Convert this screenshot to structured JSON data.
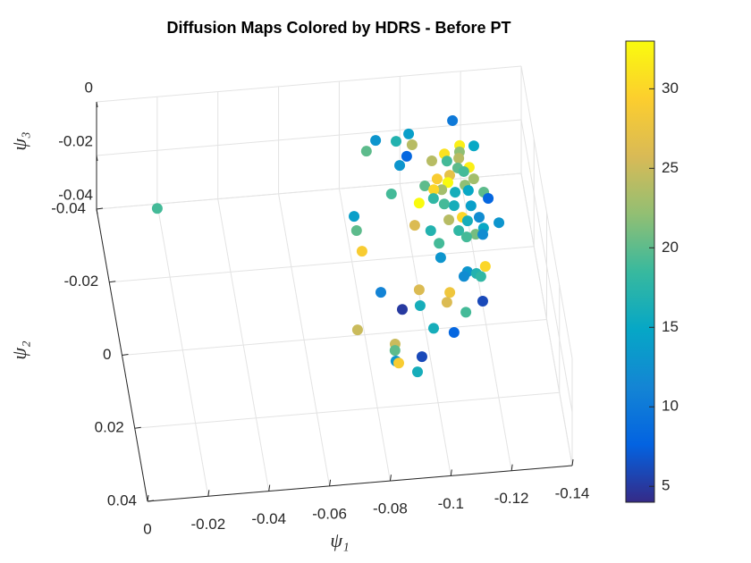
{
  "chart_data": {
    "type": "scatter3",
    "title": "Diffusion Maps Colored by HDRS - Before PT",
    "xlabel": "ψ₁",
    "ylabel": "ψ₂",
    "zlabel": "ψ₃",
    "xlim": [
      -0.14,
      0
    ],
    "ylim": [
      -0.04,
      0.04
    ],
    "zlim": [
      -0.04,
      0
    ],
    "xticks": [
      0,
      -0.02,
      -0.04,
      -0.06,
      -0.08,
      -0.1,
      -0.12,
      -0.14
    ],
    "yticks": [
      -0.04,
      -0.02,
      0,
      0.02,
      0.04
    ],
    "zticks": [
      0,
      -0.02,
      -0.04
    ],
    "grid": true,
    "colormap": "parula",
    "clim": [
      4,
      33
    ],
    "cticks": [
      5,
      10,
      15,
      20,
      25,
      30
    ],
    "x": [
      -0.0152,
      -0.1161,
      -0.1011,
      -0.09,
      -0.0966,
      -0.1016,
      -0.0864,
      -0.117,
      -0.1216,
      -0.1166,
      -0.0992,
      -0.1071,
      -0.1116,
      -0.112,
      -0.116,
      -0.1151,
      -0.1189,
      -0.1169,
      -0.0964,
      -0.1121,
      -0.1078,
      -0.1111,
      -0.1197,
      -0.1034,
      -0.1087,
      -0.1061,
      -0.1165,
      -0.1129,
      -0.1173,
      -0.0921,
      -0.1055,
      -0.1222,
      -0.1233,
      -0.1118,
      -0.1006,
      -0.1087,
      -0.1173,
      -0.1138,
      -0.1193,
      -0.1254,
      -0.1153,
      -0.0787,
      -0.0979,
      -0.1093,
      -0.1201,
      -0.1119,
      -0.0787,
      -0.1172,
      -0.1028,
      -0.1195,
      -0.1141,
      -0.1048,
      -0.0793,
      -0.1045,
      -0.1185,
      -0.1124,
      -0.1152,
      -0.111,
      -0.0831,
      -0.0957,
      -0.1055,
      -0.1165,
      -0.104,
      -0.1157,
      -0.0891,
      -0.0951,
      -0.1096,
      -0.0982,
      -0.0734,
      -0.1046,
      -0.0848,
      -0.0844,
      -0.0841,
      -0.0849,
      -0.0928,
      -0.0905
    ],
    "y": [
      -0.0171,
      -0.0341,
      -0.0315,
      -0.0305,
      -0.0298,
      -0.0285,
      -0.0278,
      -0.0272,
      -0.0268,
      -0.0255,
      -0.0255,
      -0.0237,
      -0.0253,
      -0.0233,
      -0.0238,
      -0.0212,
      -0.0211,
      -0.0201,
      -0.0232,
      -0.0194,
      -0.0187,
      -0.0175,
      -0.0179,
      -0.0171,
      -0.0157,
      -0.0159,
      -0.0164,
      -0.0147,
      -0.0149,
      -0.0157,
      -0.0135,
      -0.0141,
      -0.0123,
      -0.0111,
      -0.0126,
      -0.0118,
      -0.0107,
      -0.0078,
      -0.0074,
      -0.0055,
      -0.0067,
      -0.0105,
      -0.0067,
      -0.0074,
      -0.0044,
      -0.0043,
      -0.0066,
      -0.0029,
      -0.0049,
      -0.0027,
      -0.0024,
      -0.0013,
      -0.0009,
      0.0026,
      0.006,
      0.007,
      0.0077,
      0.0082,
      0.0106,
      0.0108,
      0.0122,
      0.0086,
      0.0148,
      0.0153,
      0.0157,
      0.0151,
      0.0179,
      0.0215,
      0.0202,
      0.0231,
      0.0249,
      0.0266,
      0.0295,
      0.0301,
      0.0289,
      0.0329
    ],
    "z": [
      -0.01,
      -0.01,
      -0.01,
      -0.01,
      -0.01,
      -0.01,
      -0.01,
      -0.01,
      -0.01,
      -0.01,
      -0.01,
      -0.01,
      -0.01,
      -0.01,
      -0.01,
      -0.01,
      -0.01,
      -0.01,
      -0.01,
      -0.01,
      -0.01,
      -0.01,
      -0.01,
      -0.01,
      -0.01,
      -0.01,
      -0.01,
      -0.01,
      -0.01,
      -0.01,
      -0.01,
      -0.01,
      -0.01,
      -0.01,
      -0.01,
      -0.01,
      -0.01,
      -0.01,
      -0.01,
      -0.01,
      -0.01,
      -0.01,
      -0.01,
      -0.01,
      -0.01,
      -0.01,
      -0.01,
      -0.01,
      -0.01,
      -0.01,
      -0.01,
      -0.01,
      -0.01,
      -0.01,
      -0.01,
      -0.01,
      -0.01,
      -0.01,
      -0.01,
      -0.01,
      -0.01,
      -0.01,
      -0.01,
      -0.01,
      -0.01,
      -0.01,
      -0.01,
      -0.01,
      -0.01,
      -0.01,
      -0.01,
      -0.01,
      -0.01,
      -0.01,
      -0.01,
      -0.01
    ],
    "c": [
      19,
      10,
      14,
      13,
      17,
      24,
      20,
      32,
      15,
      22,
      8,
      24,
      31,
      19,
      24,
      20,
      32,
      19,
      13,
      27,
      29,
      33,
      23,
      20,
      23,
      30,
      22,
      16,
      15,
      19,
      18,
      20,
      8,
      16,
      33,
      19,
      14,
      30,
      12,
      13,
      16,
      14,
      26,
      24,
      15,
      18,
      20,
      21,
      17,
      12,
      19,
      19,
      29,
      13,
      30,
      13,
      17,
      12,
      11,
      26,
      28,
      18,
      26,
      6,
      5,
      16,
      19,
      16,
      25,
      8,
      25,
      20,
      13,
      29,
      6,
      16
    ]
  }
}
